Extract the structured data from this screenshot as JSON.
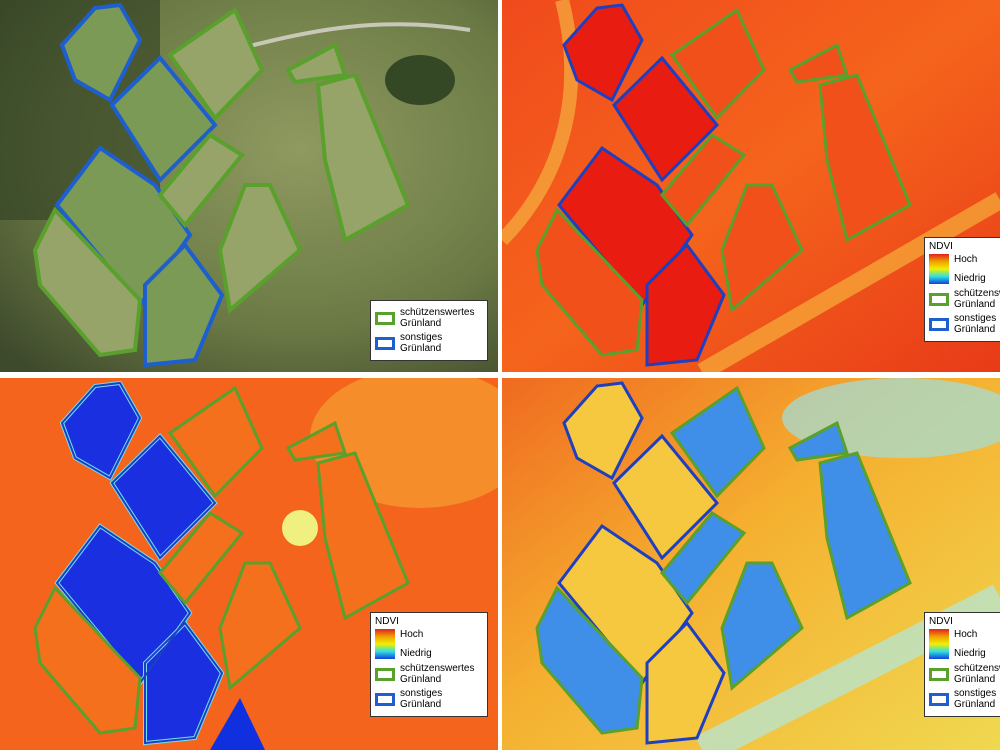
{
  "panels": [
    {
      "legend": {
        "items": [
          {
            "label": "schützenswertes Grünland"
          },
          {
            "label": "sonstiges Grünland"
          }
        ]
      }
    },
    {
      "legend": {
        "title": "NDVI",
        "high": "Hoch",
        "low": "Niedrig",
        "items": [
          {
            "label": "schützenswertes Grünland"
          },
          {
            "label": "sonstiges Grünland"
          }
        ]
      }
    },
    {
      "legend": {
        "title": "NDVI",
        "high": "Hoch",
        "low": "Niedrig",
        "items": [
          {
            "label": "schützenswertes Grünland"
          },
          {
            "label": "sonstiges Grünland"
          }
        ]
      }
    },
    {
      "legend": {
        "title": "NDVI",
        "high": "Hoch",
        "low": "Niedrig",
        "items": [
          {
            "label": "schützenswertes Grünland"
          },
          {
            "label": "sonstiges Grünland"
          }
        ]
      }
    }
  ]
}
